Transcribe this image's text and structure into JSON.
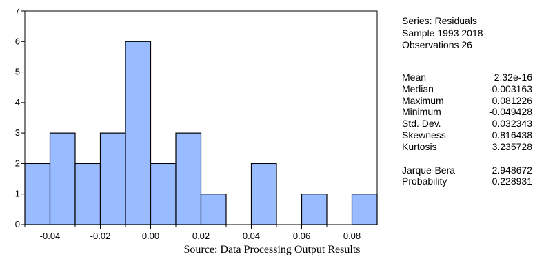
{
  "chart_data": {
    "type": "bar",
    "title": "",
    "xlabel": "",
    "ylabel": "",
    "bin_width": 0.01,
    "bins": [
      {
        "x0": -0.05,
        "x1": -0.04,
        "count": 2
      },
      {
        "x0": -0.04,
        "x1": -0.03,
        "count": 3
      },
      {
        "x0": -0.03,
        "x1": -0.02,
        "count": 2
      },
      {
        "x0": -0.02,
        "x1": -0.01,
        "count": 3
      },
      {
        "x0": -0.01,
        "x1": 0.0,
        "count": 6
      },
      {
        "x0": 0.0,
        "x1": 0.01,
        "count": 2
      },
      {
        "x0": 0.01,
        "x1": 0.02,
        "count": 3
      },
      {
        "x0": 0.02,
        "x1": 0.03,
        "count": 1
      },
      {
        "x0": 0.03,
        "x1": 0.04,
        "count": 0
      },
      {
        "x0": 0.04,
        "x1": 0.05,
        "count": 2
      },
      {
        "x0": 0.05,
        "x1": 0.06,
        "count": 0
      },
      {
        "x0": 0.06,
        "x1": 0.07,
        "count": 1
      },
      {
        "x0": 0.07,
        "x1": 0.08,
        "count": 0
      },
      {
        "x0": 0.08,
        "x1": 0.09,
        "count": 1
      }
    ],
    "xlim": [
      -0.05,
      0.09
    ],
    "ylim": [
      0,
      7
    ],
    "x_ticks": [
      "-0.04",
      "-0.02",
      "0.00",
      "0.02",
      "0.04",
      "0.06",
      "0.08"
    ],
    "y_ticks": [
      "0",
      "1",
      "2",
      "3",
      "4",
      "5",
      "6",
      "7"
    ],
    "grid": false,
    "bar_color": "#99bbff",
    "edge_color": "#000000"
  },
  "stats": {
    "series": "Series: Residuals",
    "sample": "Sample 1993 2018",
    "observations": "Observations 26",
    "rows": [
      {
        "label": "Mean",
        "value": "2.32e-16"
      },
      {
        "label": "Median",
        "value": "-0.003163"
      },
      {
        "label": "Maximum",
        "value": "0.081226"
      },
      {
        "label": "Minimum",
        "value": "-0.049428"
      },
      {
        "label": "Std. Dev.",
        "value": "0.032343"
      },
      {
        "label": "Skewness",
        "value": "0.816438"
      },
      {
        "label": "Kurtosis",
        "value": "3.235728"
      }
    ],
    "test_rows": [
      {
        "label": "Jarque-Bera",
        "value": "2.948672"
      },
      {
        "label": "Probability",
        "value": "0.228931"
      }
    ]
  },
  "caption": "Source: Data Processing Output Results"
}
